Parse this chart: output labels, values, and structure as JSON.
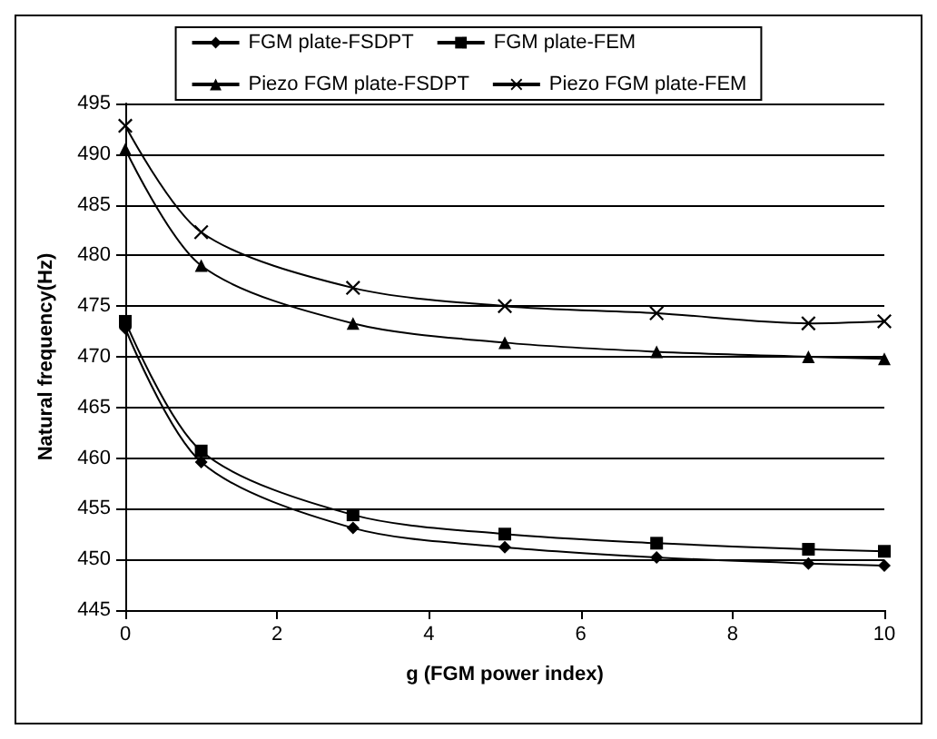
{
  "chart_data": {
    "type": "line",
    "xlabel": "g (FGM power index)",
    "ylabel": "Natural frequency(Hz)",
    "x": [
      0,
      1,
      3,
      5,
      7,
      9,
      10
    ],
    "series": [
      {
        "name": "FGM plate-FSDPT",
        "color": "#000000",
        "marker": "diamond",
        "values": [
          472.8,
          459.6,
          453.1,
          451.2,
          450.2,
          449.6,
          449.4
        ]
      },
      {
        "name": "FGM plate-FEM",
        "color": "#000000",
        "marker": "square",
        "values": [
          473.5,
          460.7,
          454.4,
          452.5,
          451.6,
          451.0,
          450.8
        ]
      },
      {
        "name": "Piezo FGM plate-FSDPT",
        "color": "#000000",
        "marker": "triangle",
        "values": [
          490.5,
          479.0,
          473.3,
          471.4,
          470.5,
          470.0,
          469.8
        ]
      },
      {
        "name": "Piezo FGM plate-FEM",
        "color": "#000000",
        "marker": "cross",
        "values": [
          492.8,
          482.3,
          476.8,
          475.0,
          474.3,
          473.3,
          473.5
        ]
      }
    ],
    "xlim": [
      0,
      10
    ],
    "xticks": [
      0,
      2,
      4,
      6,
      8,
      10
    ],
    "ylim": [
      445,
      495
    ],
    "yticks": [
      445,
      450,
      455,
      460,
      465,
      470,
      475,
      480,
      485,
      490,
      495
    ],
    "grid": "y",
    "legend": "top"
  }
}
